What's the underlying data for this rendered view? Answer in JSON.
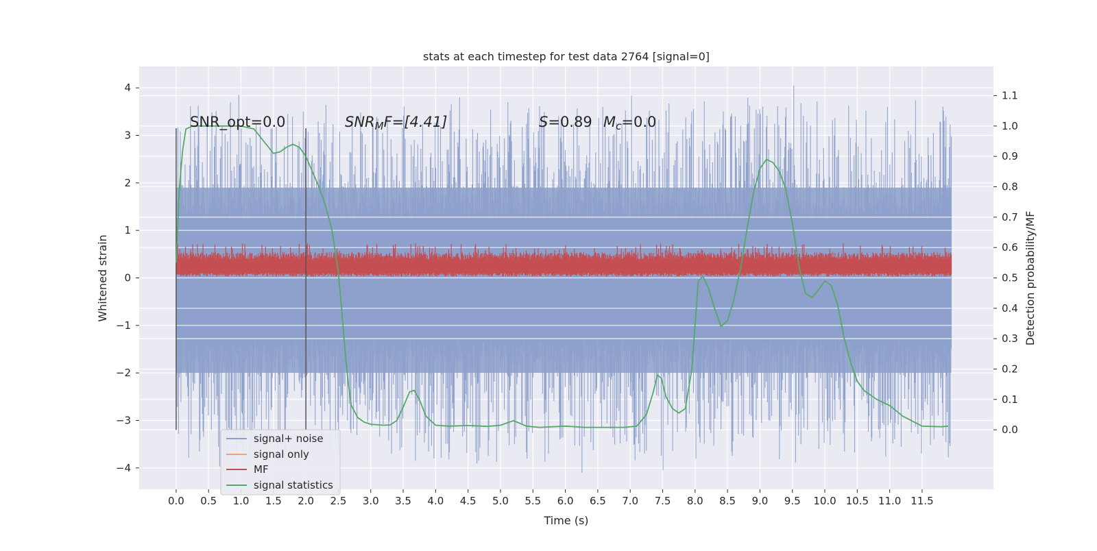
{
  "chart_data": {
    "type": "line",
    "title": "stats at each timestep for test data 2764 [signal=0]",
    "xlabel": "Time (s)",
    "ylabel_left": "Whitened strain",
    "ylabel_right": "Detection probability/MF",
    "xlim": [
      -0.57,
      12.6
    ],
    "ylim_left": [
      -4.45,
      4.45
    ],
    "ylim_right": [
      -0.196,
      1.196
    ],
    "x_ticks": [
      0.0,
      0.5,
      1.0,
      1.5,
      2.0,
      2.5,
      3.0,
      3.5,
      4.0,
      4.5,
      5.0,
      5.5,
      6.0,
      6.5,
      7.0,
      7.5,
      8.0,
      8.5,
      9.0,
      9.5,
      10.0,
      10.5,
      11.0,
      11.5
    ],
    "x_tick_labels": [
      "0.0",
      "0.5",
      "1.0",
      "1.5",
      "2.0",
      "2.5",
      "3.0",
      "3.5",
      "4.0",
      "4.5",
      "5.0",
      "5.5",
      "6.0",
      "6.5",
      "7.0",
      "7.5",
      "8.0",
      "8.5",
      "9.0",
      "9.5",
      "10.0",
      "10.5",
      "11.0",
      "11.5"
    ],
    "y_left_ticks": [
      -4,
      -3,
      -2,
      -1,
      0,
      1,
      2,
      3,
      4
    ],
    "y_left_tick_labels": [
      "−4",
      "−3",
      "−2",
      "−1",
      "0",
      "1",
      "2",
      "3",
      "4"
    ],
    "y_right_ticks": [
      0.0,
      0.1,
      0.2,
      0.3,
      0.4,
      0.5,
      0.6,
      0.7,
      0.8,
      0.9,
      1.0,
      1.1
    ],
    "y_right_tick_labels": [
      "0.0",
      "0.1",
      "0.2",
      "0.3",
      "0.4",
      "0.5",
      "0.6",
      "0.7",
      "0.8",
      "0.9",
      "1.0",
      "1.1"
    ],
    "grid": true,
    "legend_position": "lower-left",
    "annotations": {
      "snr_opt": "SNR_opt=0.0",
      "snr_mf_prefix": "SNR",
      "snr_mf_sub": "M",
      "snr_mf_suffix": "F=[4.41]",
      "s_var": "S",
      "s_value": "=0.89",
      "mc_var": "M",
      "mc_sub": "c",
      "mc_value": "=0.0"
    },
    "vertical_markers": [
      0.0,
      2.0
    ],
    "noise_strain": {
      "time_range": [
        0.0,
        11.95
      ],
      "typical_envelope": [
        -2.0,
        1.9
      ],
      "max": 4.05,
      "min": -4.1
    },
    "series": [
      {
        "name": "signal+ noise",
        "color": "#8da0cb",
        "axis": "left"
      },
      {
        "name": "signal only",
        "color": "#e8a385",
        "axis": "left"
      },
      {
        "name": "MF",
        "color": "#c44e52",
        "axis": "right",
        "band": [
          0.505,
          0.56
        ],
        "time_range": [
          0.0,
          11.95
        ]
      },
      {
        "name": "signal statistics",
        "color": "#55a868",
        "axis": "right",
        "x": [
          0.0,
          0.05,
          0.1,
          0.15,
          0.25,
          0.4,
          0.6,
          0.8,
          1.0,
          1.2,
          1.35,
          1.5,
          1.6,
          1.7,
          1.8,
          1.9,
          2.0,
          2.1,
          2.2,
          2.3,
          2.4,
          2.5,
          2.55,
          2.6,
          2.65,
          2.7,
          2.8,
          2.9,
          3.0,
          3.2,
          3.3,
          3.4,
          3.5,
          3.6,
          3.67,
          3.75,
          3.85,
          4.0,
          4.2,
          4.5,
          4.8,
          5.0,
          5.2,
          5.4,
          5.6,
          6.0,
          6.3,
          6.6,
          6.9,
          7.1,
          7.25,
          7.35,
          7.42,
          7.48,
          7.55,
          7.65,
          7.75,
          7.85,
          7.95,
          8.05,
          8.12,
          8.2,
          8.3,
          8.4,
          8.5,
          8.6,
          8.7,
          8.8,
          8.9,
          9.0,
          9.1,
          9.2,
          9.3,
          9.4,
          9.5,
          9.6,
          9.7,
          9.8,
          9.9,
          10.0,
          10.1,
          10.2,
          10.3,
          10.4,
          10.5,
          10.6,
          10.8,
          11.0,
          11.2,
          11.5,
          11.8,
          11.9
        ],
        "y": [
          0.55,
          0.8,
          0.92,
          0.99,
          1.0,
          1.0,
          1.0,
          1.0,
          1.0,
          0.99,
          0.95,
          0.91,
          0.915,
          0.93,
          0.94,
          0.93,
          0.9,
          0.85,
          0.8,
          0.74,
          0.66,
          0.52,
          0.4,
          0.27,
          0.16,
          0.08,
          0.04,
          0.025,
          0.018,
          0.015,
          0.016,
          0.03,
          0.075,
          0.125,
          0.13,
          0.1,
          0.045,
          0.015,
          0.012,
          0.014,
          0.011,
          0.015,
          0.03,
          0.012,
          0.008,
          0.012,
          0.008,
          0.008,
          0.008,
          0.012,
          0.05,
          0.12,
          0.18,
          0.17,
          0.11,
          0.07,
          0.055,
          0.07,
          0.2,
          0.49,
          0.505,
          0.47,
          0.4,
          0.34,
          0.36,
          0.43,
          0.53,
          0.66,
          0.78,
          0.86,
          0.89,
          0.88,
          0.85,
          0.79,
          0.68,
          0.54,
          0.45,
          0.435,
          0.46,
          0.49,
          0.475,
          0.41,
          0.3,
          0.22,
          0.16,
          0.13,
          0.1,
          0.08,
          0.045,
          0.012,
          0.01,
          0.012
        ]
      }
    ]
  }
}
